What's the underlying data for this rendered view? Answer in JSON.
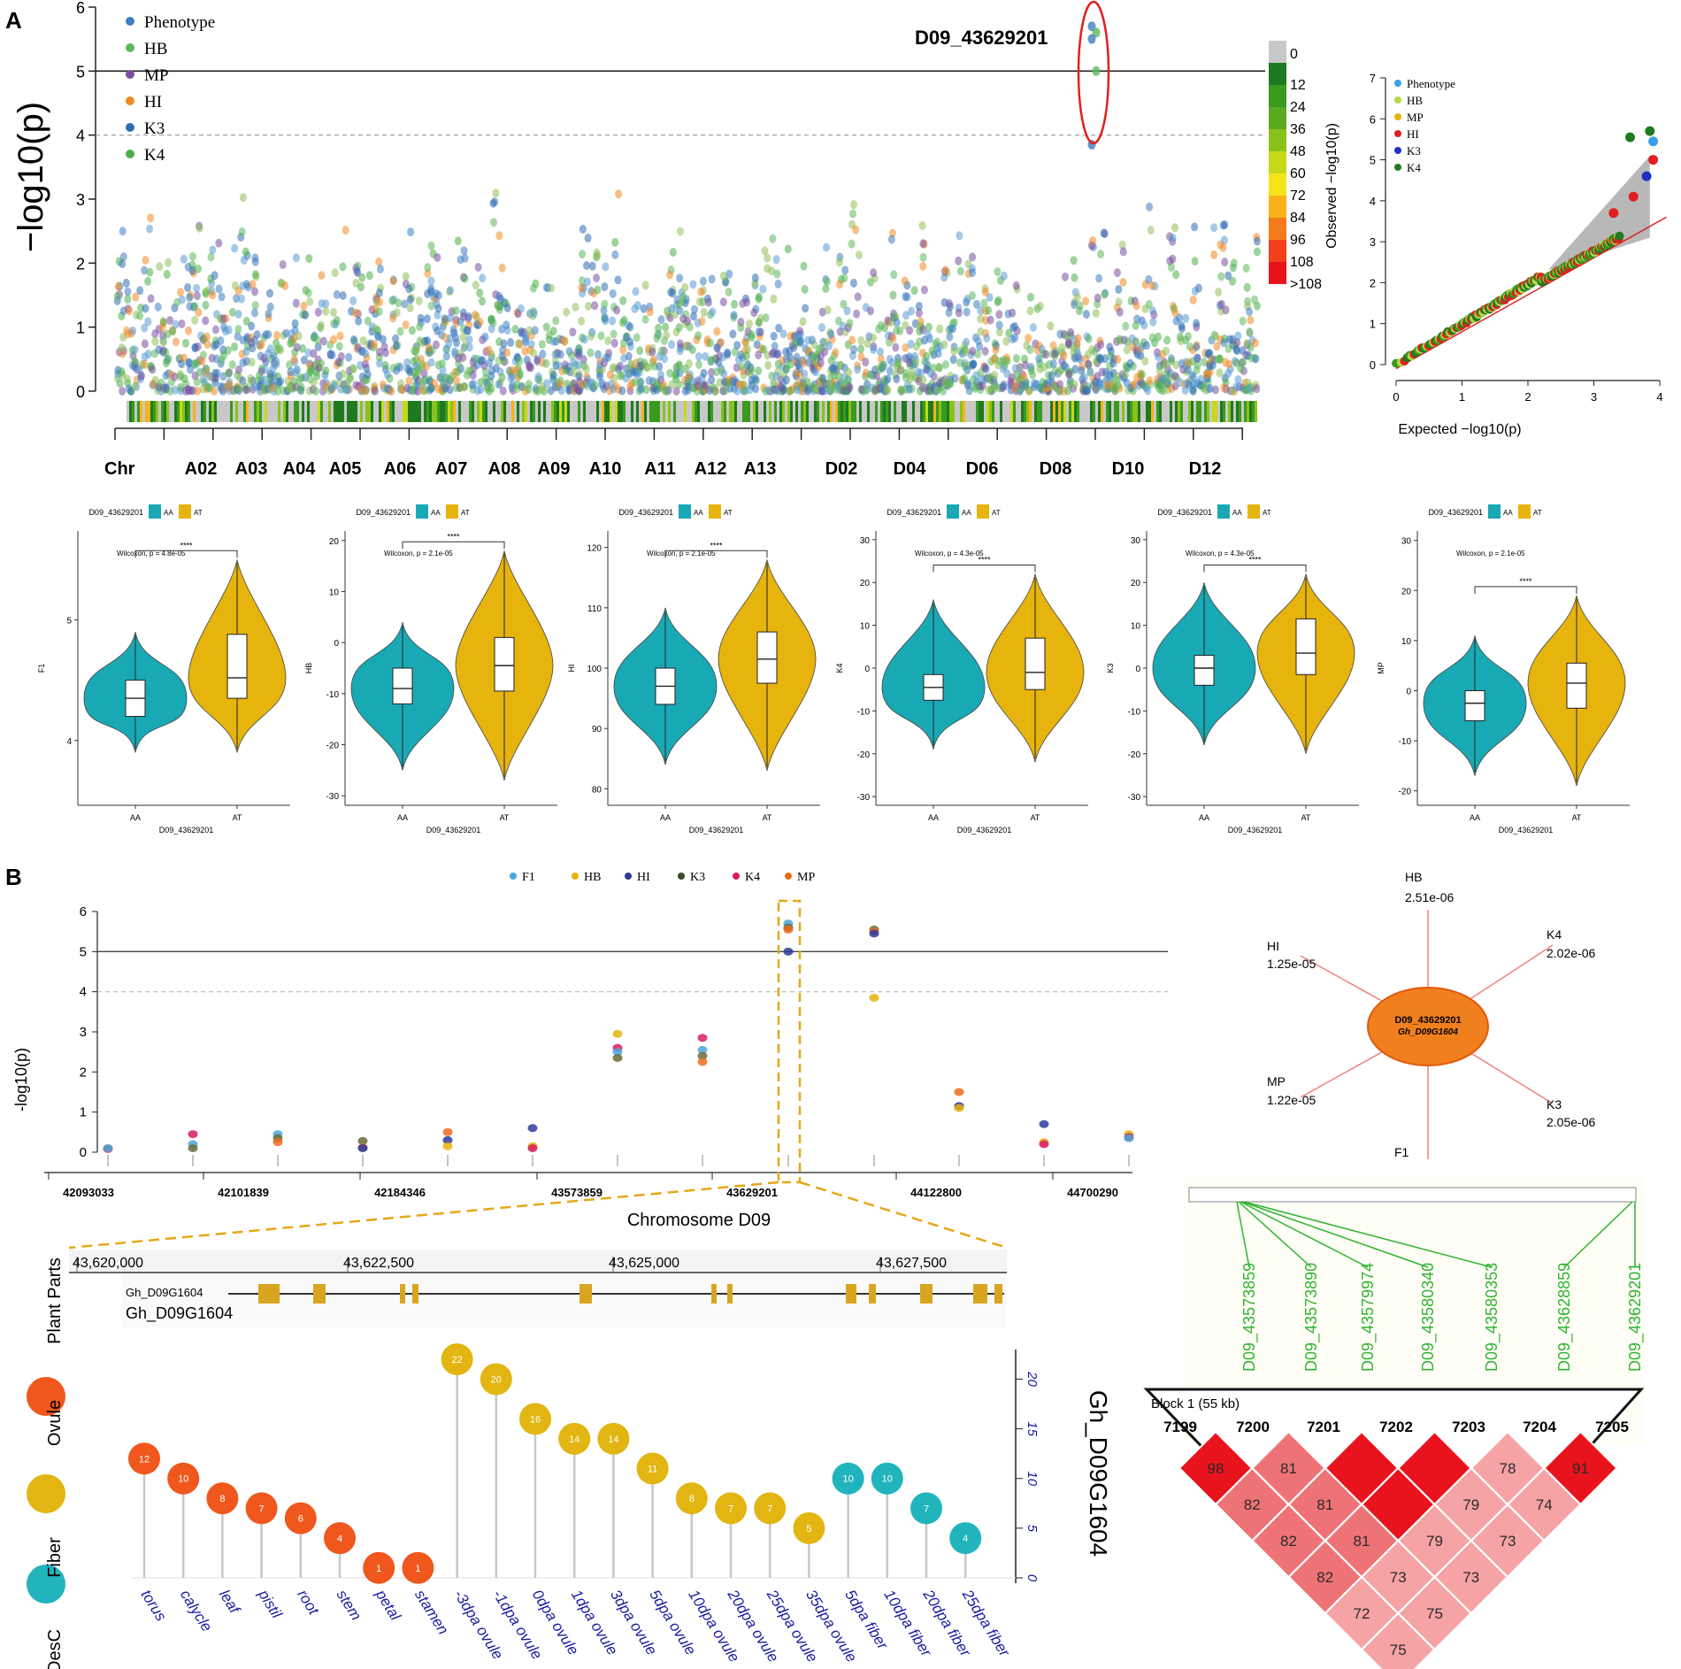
{
  "panel_labels": {
    "a": "A",
    "b": "B"
  },
  "colors": {
    "phenotype": "#3e7fc1",
    "hb": "#5cb85c",
    "mp": "#7a4fa0",
    "hi": "#f08a24",
    "k3": "#2f6db3",
    "k4": "#4cae4c",
    "teal": "#19a9b5",
    "gold": "#e6b40c",
    "plant": "#f0571c",
    "ovule": "#e2b512",
    "fiber": "#21b4bd",
    "ld_strong": "#e8131c",
    "ld_mid": "#ee7377",
    "ld_light": "#f5a3a5",
    "red_line": "#e02020"
  },
  "chart_data": [
    {
      "id": "manhattan",
      "type": "scatter",
      "ylabel": "−log10(p)",
      "ylim": [
        0,
        6
      ],
      "yticks": [
        "0",
        "1",
        "2",
        "3",
        "4",
        "5",
        "6"
      ],
      "threshold_solid": 5,
      "threshold_dashed": 4,
      "chr_prefix": "Chr",
      "chromosomes": [
        "A02",
        "A03",
        "A04",
        "A05",
        "A06",
        "A07",
        "A08",
        "A09",
        "A10",
        "A11",
        "A12",
        "A13",
        "D02",
        "D04",
        "D06",
        "D08",
        "D10",
        "D12"
      ],
      "legend": [
        "Phenotype",
        "HB",
        "MP",
        "HI",
        "K3",
        "K4"
      ],
      "annotation": "D09_43629201",
      "density_legend": [
        "0",
        "12",
        "24",
        "36",
        "48",
        "60",
        "72",
        "84",
        "96",
        "108",
        ">108"
      ],
      "density_colors": [
        "#c8c8c8",
        "#1f7a1f",
        "#3a9a1e",
        "#5aaa1f",
        "#8ac21c",
        "#c8d81a",
        "#f4e41a",
        "#f9b21a",
        "#f57c1a",
        "#f2401c",
        "#e8131c"
      ],
      "highlight_points": [
        5.7,
        5.6,
        5.5,
        5.0,
        3.85
      ]
    },
    {
      "id": "qqplot",
      "type": "scatter",
      "xlabel": "Expected  −log10(p)",
      "ylabel": "Observed  −log10(p)",
      "xlim": [
        0,
        4
      ],
      "ylim": [
        0,
        7
      ],
      "xticks": [
        "0",
        "1",
        "2",
        "3",
        "4"
      ],
      "yticks": [
        "0",
        "1",
        "2",
        "3",
        "4",
        "5",
        "6",
        "7"
      ],
      "legend": [
        "Phenotype",
        "HB",
        "MP",
        "HI",
        "K3",
        "K4"
      ],
      "top_points": [
        [
          3.55,
          5.55
        ],
        [
          3.85,
          5.7
        ],
        [
          3.9,
          5.45
        ],
        [
          3.9,
          5.0
        ],
        [
          3.8,
          4.6
        ],
        [
          3.6,
          4.1
        ],
        [
          3.3,
          3.7
        ]
      ]
    },
    {
      "id": "violins",
      "type": "violin",
      "legend_title": "D09_43629201",
      "categories": [
        "AA",
        "AT"
      ],
      "xlabel": "D09_43629201",
      "significance": "****",
      "panels": [
        {
          "ylabel": "F1",
          "wilcoxon": "Wilcoxon, p = 4.8e-05",
          "yticks": [
            "4",
            "5"
          ],
          "ytick_values": [
            4,
            5
          ],
          "ylim": [
            3.5,
            5.7
          ],
          "AA": {
            "median": 4.35,
            "q1": 4.2,
            "q3": 4.5,
            "min": 3.9,
            "max": 4.9
          },
          "AT": {
            "median": 4.52,
            "q1": 4.35,
            "q3": 4.88,
            "min": 3.9,
            "max": 5.5
          }
        },
        {
          "ylabel": "HB",
          "wilcoxon": "Wilcoxon, p = 2.1e-05",
          "yticks": [
            "-30",
            "-20",
            "-10",
            "0",
            "10",
            "20"
          ],
          "ytick_values": [
            -30,
            -20,
            -10,
            0,
            10,
            20
          ],
          "ylim": [
            -31,
            21
          ],
          "AA": {
            "median": -9,
            "q1": -12,
            "q3": -5,
            "min": -25,
            "max": 4
          },
          "AT": {
            "median": -4.5,
            "q1": -9.5,
            "q3": 1,
            "min": -27,
            "max": 18
          }
        },
        {
          "ylabel": "HI",
          "wilcoxon": "Wilcoxon, p = 2.1e-05",
          "yticks": [
            "80",
            "90",
            "100",
            "110",
            "120"
          ],
          "ytick_values": [
            80,
            90,
            100,
            110,
            120
          ],
          "ylim": [
            78,
            122
          ],
          "AA": {
            "median": 97,
            "q1": 94,
            "q3": 100,
            "min": 84,
            "max": 110
          },
          "AT": {
            "median": 101.5,
            "q1": 97.5,
            "q3": 106,
            "min": 83,
            "max": 118
          }
        },
        {
          "ylabel": "K4",
          "wilcoxon": "Wilcoxon, p = 4.3e-05",
          "yticks": [
            "-30",
            "-20",
            "-10",
            "0",
            "10",
            "20",
            "30"
          ],
          "ytick_values": [
            -30,
            -20,
            -10,
            0,
            10,
            20,
            30
          ],
          "ylim": [
            -31,
            31
          ],
          "AA": {
            "median": -4.5,
            "q1": -7.5,
            "q3": -1.5,
            "min": -19,
            "max": 16
          },
          "AT": {
            "median": -1,
            "q1": -5,
            "q3": 7,
            "min": -22,
            "max": 22
          }
        },
        {
          "ylabel": "K3",
          "wilcoxon": "Wilcoxon, p = 4.3e-05",
          "yticks": [
            "-30",
            "-20",
            "-10",
            "0",
            "10",
            "20",
            "30"
          ],
          "ytick_values": [
            -30,
            -20,
            -10,
            0,
            10,
            20,
            30
          ],
          "ylim": [
            -31,
            31
          ],
          "AA": {
            "median": 0,
            "q1": -4,
            "q3": 3,
            "min": -18,
            "max": 20
          },
          "AT": {
            "median": 3.5,
            "q1": -1.5,
            "q3": 11.5,
            "min": -20,
            "max": 22
          }
        },
        {
          "ylabel": "MP",
          "wilcoxon": "Wilcoxon, p = 2.1e-05",
          "yticks": [
            "-20",
            "-10",
            "0",
            "10",
            "20",
            "30"
          ],
          "ytick_values": [
            -20,
            -10,
            0,
            10,
            20,
            30
          ],
          "ylim": [
            -22,
            31
          ],
          "AA": {
            "median": -2.5,
            "q1": -6,
            "q3": 0,
            "min": -17,
            "max": 11
          },
          "AT": {
            "median": 1.5,
            "q1": -3.5,
            "q3": 5.5,
            "min": -19,
            "max": 19
          }
        }
      ]
    },
    {
      "id": "regional",
      "type": "scatter",
      "ylabel": "-log10(p)",
      "xlabel": "Chromosome D09",
      "ylim": [
        0,
        6
      ],
      "yticks": [
        "0",
        "1",
        "2",
        "3",
        "4",
        "5",
        "6"
      ],
      "threshold_solid": 5,
      "threshold_dashed": 4,
      "legend": [
        "F1",
        "HB",
        "HI",
        "K3",
        "K4",
        "MP"
      ],
      "legend_colors": [
        "#4ea6dc",
        "#e6b40c",
        "#2b3b9c",
        "#3a4a2a",
        "#d81b60",
        "#f06a1c"
      ],
      "xtick_labels": [
        "42093033",
        "42101839",
        "42184346",
        "43573859",
        "43629201",
        "44122800",
        "44700290"
      ],
      "positions": [
        {
          "values": [
            0.1,
            0.08,
            0.1
          ]
        },
        {
          "values": [
            0.45,
            0.2,
            0.1
          ]
        },
        {
          "values": [
            0.45,
            0.35,
            0.25
          ]
        },
        {
          "values": [
            0.28,
            0.12,
            0.1
          ]
        },
        {
          "values": [
            0.5,
            0.3,
            0.15
          ]
        },
        {
          "values": [
            0.6,
            0.15,
            0.1
          ]
        },
        {
          "values": [
            2.95,
            2.6,
            2.5,
            2.35
          ]
        },
        {
          "values": [
            2.85,
            2.55,
            2.4,
            2.25
          ]
        },
        {
          "values": [
            5.7,
            5.6,
            5.55,
            5.0
          ]
        },
        {
          "values": [
            5.55,
            5.5,
            5.45,
            3.85
          ]
        },
        {
          "values": [
            1.5,
            1.15,
            1.1
          ]
        },
        {
          "values": [
            0.7,
            0.25,
            0.2
          ]
        },
        {
          "values": [
            0.45,
            0.38,
            0.35
          ]
        }
      ]
    },
    {
      "id": "gene_track",
      "type": "table",
      "scale_labels": [
        "43,620,000",
        "43,622,500",
        "43,625,000",
        "43,627,500"
      ],
      "track_name": "Gh_D09G1604",
      "gene_label": "Gh_D09G1604"
    },
    {
      "id": "expression",
      "type": "bar",
      "ylabel": "Gh_D09G1604",
      "ylim": [
        0,
        22
      ],
      "yticks": [
        "0",
        "5",
        "10",
        "15",
        "20"
      ],
      "legend": [
        "Plant Parts",
        "Ovule",
        "Fiber",
        "DesC"
      ],
      "categories": [
        "torus",
        "calycle",
        "leaf",
        "pistil",
        "root",
        "stem",
        "petal",
        "stamen",
        "-3dpa ovule",
        "-1dpa ovule",
        "0dpa ovule",
        "1dpa ovule",
        "3dpa ovule",
        "5dpa ovule",
        "10dpa ovule",
        "20dpa ovule",
        "25dpa ovule",
        "35dpa ovule",
        "5dpa fiber",
        "10dpa fiber",
        "20dpa fiber",
        "25dpa fiber"
      ],
      "values": [
        12,
        10,
        8,
        7,
        6,
        4,
        1,
        1,
        22,
        20,
        16,
        14,
        14,
        11,
        8,
        7,
        7,
        5,
        10,
        10,
        7,
        4
      ],
      "groups": [
        "plant",
        "plant",
        "plant",
        "plant",
        "plant",
        "plant",
        "plant",
        "plant",
        "ovule",
        "ovule",
        "ovule",
        "ovule",
        "ovule",
        "ovule",
        "ovule",
        "ovule",
        "ovule",
        "ovule",
        "fiber",
        "fiber",
        "fiber",
        "fiber"
      ]
    },
    {
      "id": "network",
      "type": "scatter",
      "center_snp": "D09_43629201",
      "center_gene": "Gh_D09G1604",
      "nodes": [
        {
          "trait": "HB",
          "p": "2.51e-06"
        },
        {
          "trait": "K4",
          "p": "2.02e-06"
        },
        {
          "trait": "K3",
          "p": "2.05e-06"
        },
        {
          "trait": "F1",
          "p": ""
        },
        {
          "trait": "MP",
          "p": "1.22e-05"
        },
        {
          "trait": "HI",
          "p": "1.25e-05"
        }
      ]
    },
    {
      "id": "ld_block",
      "type": "heatmap",
      "block_title": "Block 1 (55 kb)",
      "snps": [
        "D09_43573859",
        "D09_43573890",
        "D09_43579974",
        "D09_43580340",
        "D09_43580353",
        "D09_43628859",
        "D09_43629201"
      ],
      "marker_ids": [
        "7199",
        "7200",
        "7201",
        "7202",
        "7203",
        "7204",
        "7205"
      ],
      "rows": [
        [
          "98",
          "81",
          "",
          "",
          "78",
          "91"
        ],
        [
          "82",
          "81",
          "",
          "79",
          "74"
        ],
        [
          "82",
          "81",
          "79",
          "73"
        ],
        [
          "82",
          "73",
          "73"
        ],
        [
          "72",
          "75"
        ],
        [
          "75"
        ]
      ],
      "strong_cells": [
        [
          0,
          0
        ],
        [
          0,
          2
        ],
        [
          0,
          3
        ],
        [
          0,
          5
        ],
        [
          1,
          2
        ]
      ]
    }
  ]
}
